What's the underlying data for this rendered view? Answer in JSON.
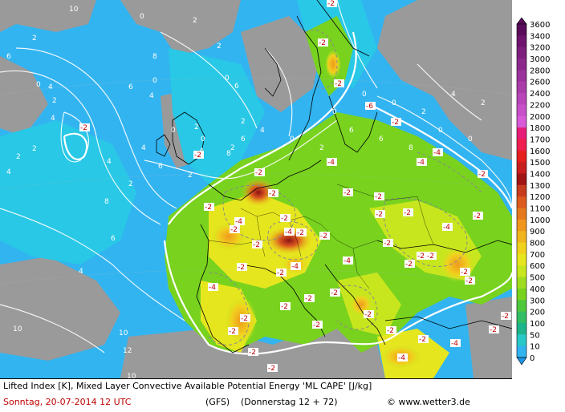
{
  "map": {
    "title_line": "Lifted Index [K], Mixed Layer Convective Available Potential Energy 'ML CAPE' [J/kg]",
    "date_line": "Sonntag, 20-07-2014  12 UTC",
    "model": "(GFS)",
    "forecast": "(Donnerstag 12 + 72)",
    "copyright": "© www.wetter3.de",
    "lifted_index_labels": {
      "negative": [
        "-2",
        "-2",
        "-2",
        "-2",
        "-2",
        "-4",
        "-2",
        "-2",
        "-2",
        "-4",
        "-2",
        "-2",
        "-2",
        "-4",
        "-2",
        "-2",
        "-2",
        "-2",
        "-2",
        "-2",
        "-2",
        "-2",
        "-4",
        "-6",
        "-4",
        "-2",
        "-4",
        "-2",
        "-2",
        "-2",
        "-2",
        "-2",
        "-4",
        "-2",
        "-2",
        "-2",
        "-2",
        "-2",
        "-2",
        "-4",
        "-2",
        "-4",
        "-2",
        "-2",
        "-2",
        "-4",
        "-2",
        "-2",
        "-4",
        "-2",
        "-2",
        "-2",
        "-2"
      ],
      "positive": [
        "10",
        "2",
        "6",
        "4",
        "4",
        "2",
        "0",
        "2",
        "4",
        "8",
        "6",
        "4",
        "2",
        "4",
        "6",
        "4",
        "8",
        "0",
        "0",
        "2",
        "2",
        "0",
        "6",
        "2",
        "6",
        "8",
        "2",
        "4",
        "10",
        "12",
        "10",
        "10",
        "0",
        "0",
        "0",
        "2",
        "4",
        "2",
        "4",
        "0",
        "0",
        "2",
        "4",
        "0",
        "2",
        "6",
        "6",
        "8",
        "0",
        "0",
        "2",
        "6",
        "2"
      ]
    }
  },
  "legend": {
    "unit": "J/kg",
    "levels": [
      "3600",
      "3400",
      "3200",
      "3000",
      "2800",
      "2600",
      "2400",
      "2200",
      "2000",
      "1800",
      "1700",
      "1600",
      "1500",
      "1400",
      "1300",
      "1200",
      "1100",
      "1000",
      "900",
      "800",
      "700",
      "600",
      "500",
      "400",
      "300",
      "200",
      "100",
      "50",
      "10",
      "0"
    ],
    "colors": [
      "#5a0a5a",
      "#6e146e",
      "#7d1e7d",
      "#8c288c",
      "#9b329b",
      "#aa3caa",
      "#b946b9",
      "#c850c8",
      "#d75ad7",
      "#e61e78",
      "#f01e50",
      "#e61e1e",
      "#c81e1e",
      "#a01414",
      "#c83c1e",
      "#dc5a1e",
      "#e6781e",
      "#f0961e",
      "#f0b41e",
      "#f0d21e",
      "#e6e61e",
      "#c8e61e",
      "#a0dc1e",
      "#78d21e",
      "#50c83c",
      "#32be64",
      "#1eb48c",
      "#28c8c8",
      "#32b4f0",
      "#1e96e6"
    ]
  }
}
